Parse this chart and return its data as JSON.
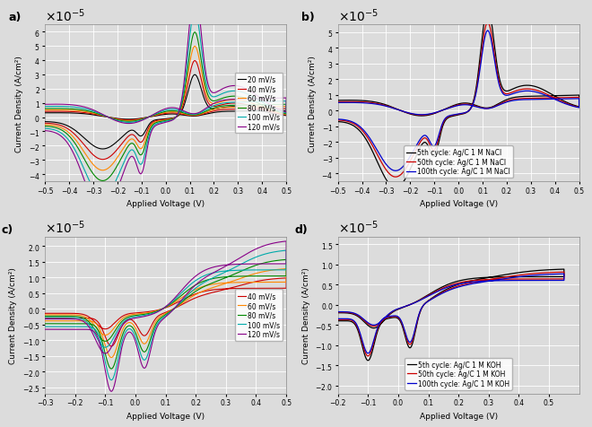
{
  "fig_width": 6.6,
  "fig_height": 4.77,
  "dpi": 100,
  "background_color": "#dcdcdc",
  "grid_color": "#ffffff",
  "panel_labels": [
    "a)",
    "b)",
    "c)",
    "d)"
  ],
  "panel_label_fontsize": 9,
  "axis_label_fontsize": 6.5,
  "tick_fontsize": 5.5,
  "legend_fontsize": 5.5,
  "subplot_a": {
    "xlabel": "Applied Voltage (V)",
    "ylabel": "Current Density (A/cm²)",
    "xlim": [
      -0.5,
      0.5
    ],
    "ylim": [
      -4.5e-05,
      6.5e-05
    ],
    "yticks": [
      -4e-05,
      -3e-05,
      -2e-05,
      -1e-05,
      0,
      1e-05,
      2e-05,
      3e-05,
      4e-05,
      5e-05,
      6e-05
    ],
    "xticks": [
      -0.5,
      -0.4,
      -0.3,
      -0.2,
      -0.1,
      0.0,
      0.1,
      0.2,
      0.3,
      0.4,
      0.5
    ],
    "legend_labels": [
      "20 mV/s",
      "40 mV/s",
      "60 mV/s",
      "80 mV/s",
      "100 mV/s",
      "120 mV/s"
    ],
    "colors": [
      "#000000",
      "#cc0000",
      "#ff8800",
      "#008800",
      "#00aaaa",
      "#880088"
    ],
    "amplitudes": [
      1.0,
      1.33,
      1.67,
      2.0,
      2.5,
      3.0
    ]
  },
  "subplot_b": {
    "xlabel": "Applied Voltage (V)",
    "ylabel": "Current Density (A/cm²)",
    "xlim": [
      -0.5,
      0.5
    ],
    "ylim": [
      -4.5e-05,
      5.5e-05
    ],
    "yticks": [
      -4e-05,
      -3e-05,
      -2e-05,
      -1e-05,
      0,
      1e-05,
      2e-05,
      3e-05,
      4e-05,
      5e-05
    ],
    "xticks": [
      -0.5,
      -0.4,
      -0.3,
      -0.2,
      -0.1,
      0.0,
      0.1,
      0.2,
      0.3,
      0.4,
      0.5
    ],
    "legend_labels": [
      "5th cycle: Ag/C 1 M NaCl",
      "50th cycle: Ag/C 1 M NaCl",
      "100th cycle: Ag/C 1 M NaCl"
    ],
    "colors": [
      "#000000",
      "#cc0000",
      "#0000cc"
    ],
    "amplitudes": [
      1.0,
      0.86,
      0.78
    ]
  },
  "subplot_c": {
    "xlabel": "Applied Voltage (V)",
    "ylabel": "Current Density (A/cm²)",
    "xlim": [
      -0.3,
      0.5
    ],
    "ylim": [
      -2.7e-05,
      2.3e-05
    ],
    "yticks": [
      -2.5e-05,
      -2e-05,
      -1.5e-05,
      -1e-05,
      -5e-06,
      0,
      5e-06,
      1e-05,
      1.5e-05,
      2e-05
    ],
    "xticks": [
      -0.3,
      -0.2,
      -0.1,
      0.0,
      0.1,
      0.2,
      0.3,
      0.4,
      0.5
    ],
    "legend_labels": [
      "40 mV/s",
      "60 mV/s",
      "80 mV/s",
      "100 mV/s",
      "120 mV/s"
    ],
    "colors": [
      "#cc0000",
      "#ff8800",
      "#008800",
      "#00aaaa",
      "#880088"
    ],
    "amplitudes": [
      1.0,
      1.3,
      1.6,
      1.9,
      2.2
    ]
  },
  "subplot_d": {
    "xlabel": "Applied Voltage (V)",
    "ylabel": "Current Density (A/cm²)",
    "xlim": [
      -0.2,
      0.6
    ],
    "ylim": [
      -2.2e-05,
      1.7e-05
    ],
    "yticks": [
      -2e-05,
      -1.5e-05,
      -1e-05,
      -5e-06,
      0,
      5e-06,
      1e-05,
      1.5e-05
    ],
    "xticks": [
      -0.2,
      -0.1,
      0.0,
      0.1,
      0.2,
      0.3,
      0.4,
      0.5
    ],
    "legend_labels": [
      "5th cycle: Ag/C 1 M KOH",
      "50th cycle: Ag/C 1 M KOH",
      "100th cycle: Ag/C 1 M KOH"
    ],
    "colors": [
      "#000000",
      "#cc0000",
      "#0000cc"
    ],
    "amplitudes": [
      1.0,
      0.92,
      0.87
    ]
  }
}
